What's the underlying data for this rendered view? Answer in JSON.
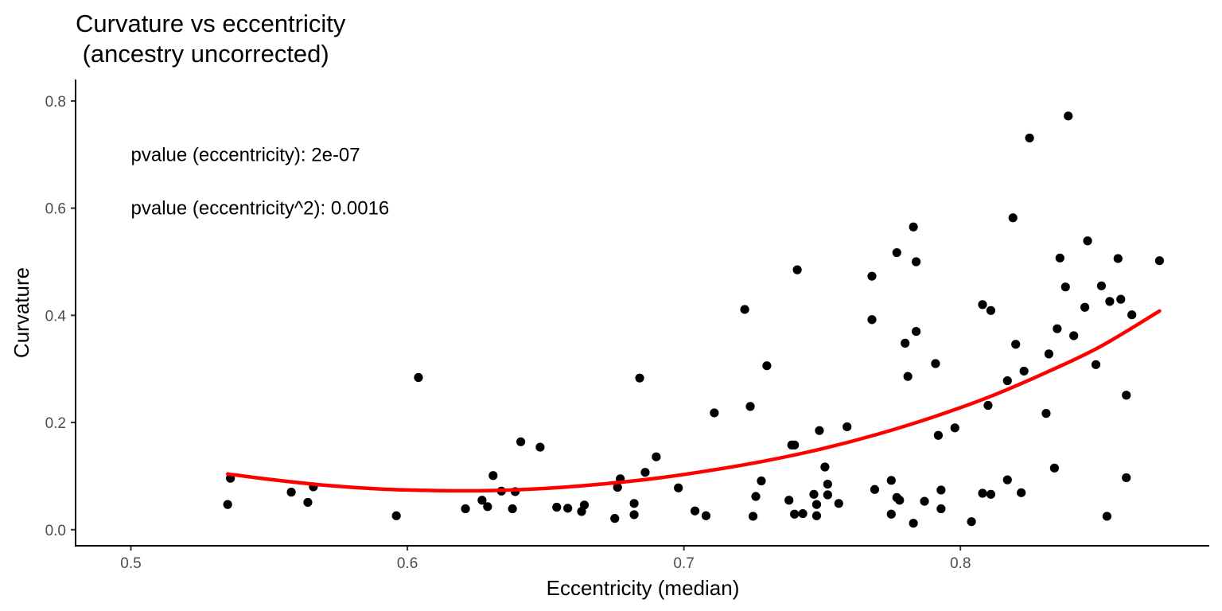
{
  "chart_data": {
    "type": "scatter",
    "title_lines": [
      "Curvature vs eccentricity",
      " (ancestry uncorrected)"
    ],
    "xlabel": "Eccentricity (median)",
    "ylabel": "Curvature",
    "xlim": [
      0.48,
      0.89
    ],
    "ylim": [
      -0.03,
      0.84
    ],
    "xticks": [
      0.5,
      0.6,
      0.7,
      0.8
    ],
    "xtick_labels": [
      "0.5",
      "0.6",
      "0.7",
      "0.8"
    ],
    "yticks": [
      0.0,
      0.2,
      0.4,
      0.6,
      0.8
    ],
    "ytick_labels": [
      "0.0",
      "0.2",
      "0.4",
      "0.6",
      "0.8"
    ],
    "grid": false,
    "annotations": [
      {
        "text": "pvalue (eccentricity): 2e-07",
        "x": 0.5,
        "y": 0.7
      },
      {
        "text": "pvalue (eccentricity^2): 0.0016",
        "x": 0.5,
        "y": 0.6
      }
    ],
    "point_color": "#000000",
    "fit_color": "#ff0000",
    "points": [
      {
        "x": 0.535,
        "y": 0.047
      },
      {
        "x": 0.536,
        "y": 0.096
      },
      {
        "x": 0.558,
        "y": 0.07
      },
      {
        "x": 0.564,
        "y": 0.051
      },
      {
        "x": 0.566,
        "y": 0.08
      },
      {
        "x": 0.596,
        "y": 0.026
      },
      {
        "x": 0.604,
        "y": 0.284
      },
      {
        "x": 0.621,
        "y": 0.039
      },
      {
        "x": 0.627,
        "y": 0.055
      },
      {
        "x": 0.629,
        "y": 0.043
      },
      {
        "x": 0.631,
        "y": 0.101
      },
      {
        "x": 0.634,
        "y": 0.072
      },
      {
        "x": 0.638,
        "y": 0.039
      },
      {
        "x": 0.639,
        "y": 0.071
      },
      {
        "x": 0.641,
        "y": 0.164
      },
      {
        "x": 0.648,
        "y": 0.154
      },
      {
        "x": 0.654,
        "y": 0.042
      },
      {
        "x": 0.658,
        "y": 0.04
      },
      {
        "x": 0.663,
        "y": 0.034
      },
      {
        "x": 0.664,
        "y": 0.046
      },
      {
        "x": 0.675,
        "y": 0.021
      },
      {
        "x": 0.676,
        "y": 0.079
      },
      {
        "x": 0.677,
        "y": 0.095
      },
      {
        "x": 0.682,
        "y": 0.049
      },
      {
        "x": 0.682,
        "y": 0.028
      },
      {
        "x": 0.684,
        "y": 0.283
      },
      {
        "x": 0.686,
        "y": 0.107
      },
      {
        "x": 0.69,
        "y": 0.136
      },
      {
        "x": 0.698,
        "y": 0.078
      },
      {
        "x": 0.704,
        "y": 0.035
      },
      {
        "x": 0.708,
        "y": 0.026
      },
      {
        "x": 0.711,
        "y": 0.218
      },
      {
        "x": 0.722,
        "y": 0.411
      },
      {
        "x": 0.724,
        "y": 0.23
      },
      {
        "x": 0.725,
        "y": 0.025
      },
      {
        "x": 0.726,
        "y": 0.062
      },
      {
        "x": 0.728,
        "y": 0.091
      },
      {
        "x": 0.73,
        "y": 0.306
      },
      {
        "x": 0.738,
        "y": 0.055
      },
      {
        "x": 0.739,
        "y": 0.158
      },
      {
        "x": 0.74,
        "y": 0.158
      },
      {
        "x": 0.74,
        "y": 0.029
      },
      {
        "x": 0.741,
        "y": 0.485
      },
      {
        "x": 0.743,
        "y": 0.03
      },
      {
        "x": 0.747,
        "y": 0.066
      },
      {
        "x": 0.748,
        "y": 0.026
      },
      {
        "x": 0.748,
        "y": 0.047
      },
      {
        "x": 0.749,
        "y": 0.185
      },
      {
        "x": 0.751,
        "y": 0.117
      },
      {
        "x": 0.752,
        "y": 0.085
      },
      {
        "x": 0.752,
        "y": 0.065
      },
      {
        "x": 0.756,
        "y": 0.049
      },
      {
        "x": 0.759,
        "y": 0.192
      },
      {
        "x": 0.768,
        "y": 0.392
      },
      {
        "x": 0.768,
        "y": 0.473
      },
      {
        "x": 0.769,
        "y": 0.075
      },
      {
        "x": 0.775,
        "y": 0.029
      },
      {
        "x": 0.775,
        "y": 0.092
      },
      {
        "x": 0.777,
        "y": 0.517
      },
      {
        "x": 0.777,
        "y": 0.06
      },
      {
        "x": 0.778,
        "y": 0.055
      },
      {
        "x": 0.78,
        "y": 0.348
      },
      {
        "x": 0.781,
        "y": 0.286
      },
      {
        "x": 0.783,
        "y": 0.565
      },
      {
        "x": 0.783,
        "y": 0.012
      },
      {
        "x": 0.784,
        "y": 0.37
      },
      {
        "x": 0.784,
        "y": 0.5
      },
      {
        "x": 0.787,
        "y": 0.053
      },
      {
        "x": 0.791,
        "y": 0.31
      },
      {
        "x": 0.792,
        "y": 0.176
      },
      {
        "x": 0.793,
        "y": 0.074
      },
      {
        "x": 0.793,
        "y": 0.039
      },
      {
        "x": 0.798,
        "y": 0.19
      },
      {
        "x": 0.804,
        "y": 0.015
      },
      {
        "x": 0.808,
        "y": 0.42
      },
      {
        "x": 0.808,
        "y": 0.068
      },
      {
        "x": 0.81,
        "y": 0.232
      },
      {
        "x": 0.811,
        "y": 0.409
      },
      {
        "x": 0.811,
        "y": 0.066
      },
      {
        "x": 0.817,
        "y": 0.093
      },
      {
        "x": 0.817,
        "y": 0.278
      },
      {
        "x": 0.819,
        "y": 0.582
      },
      {
        "x": 0.82,
        "y": 0.346
      },
      {
        "x": 0.822,
        "y": 0.069
      },
      {
        "x": 0.823,
        "y": 0.296
      },
      {
        "x": 0.825,
        "y": 0.731
      },
      {
        "x": 0.831,
        "y": 0.217
      },
      {
        "x": 0.832,
        "y": 0.328
      },
      {
        "x": 0.834,
        "y": 0.115
      },
      {
        "x": 0.835,
        "y": 0.375
      },
      {
        "x": 0.836,
        "y": 0.507
      },
      {
        "x": 0.838,
        "y": 0.453
      },
      {
        "x": 0.839,
        "y": 0.772
      },
      {
        "x": 0.841,
        "y": 0.362
      },
      {
        "x": 0.845,
        "y": 0.415
      },
      {
        "x": 0.846,
        "y": 0.539
      },
      {
        "x": 0.849,
        "y": 0.308
      },
      {
        "x": 0.851,
        "y": 0.455
      },
      {
        "x": 0.853,
        "y": 0.025
      },
      {
        "x": 0.854,
        "y": 0.426
      },
      {
        "x": 0.857,
        "y": 0.506
      },
      {
        "x": 0.858,
        "y": 0.43
      },
      {
        "x": 0.86,
        "y": 0.097
      },
      {
        "x": 0.86,
        "y": 0.251
      },
      {
        "x": 0.862,
        "y": 0.401
      },
      {
        "x": 0.872,
        "y": 0.502
      }
    ],
    "fit": {
      "x": [
        0.535,
        0.55,
        0.57,
        0.59,
        0.61,
        0.63,
        0.65,
        0.67,
        0.69,
        0.71,
        0.73,
        0.75,
        0.77,
        0.79,
        0.81,
        0.83,
        0.85,
        0.872
      ],
      "y": [
        0.104,
        0.094,
        0.083,
        0.076,
        0.073,
        0.073,
        0.077,
        0.085,
        0.096,
        0.111,
        0.129,
        0.151,
        0.178,
        0.21,
        0.247,
        0.291,
        0.34,
        0.408
      ]
    }
  }
}
